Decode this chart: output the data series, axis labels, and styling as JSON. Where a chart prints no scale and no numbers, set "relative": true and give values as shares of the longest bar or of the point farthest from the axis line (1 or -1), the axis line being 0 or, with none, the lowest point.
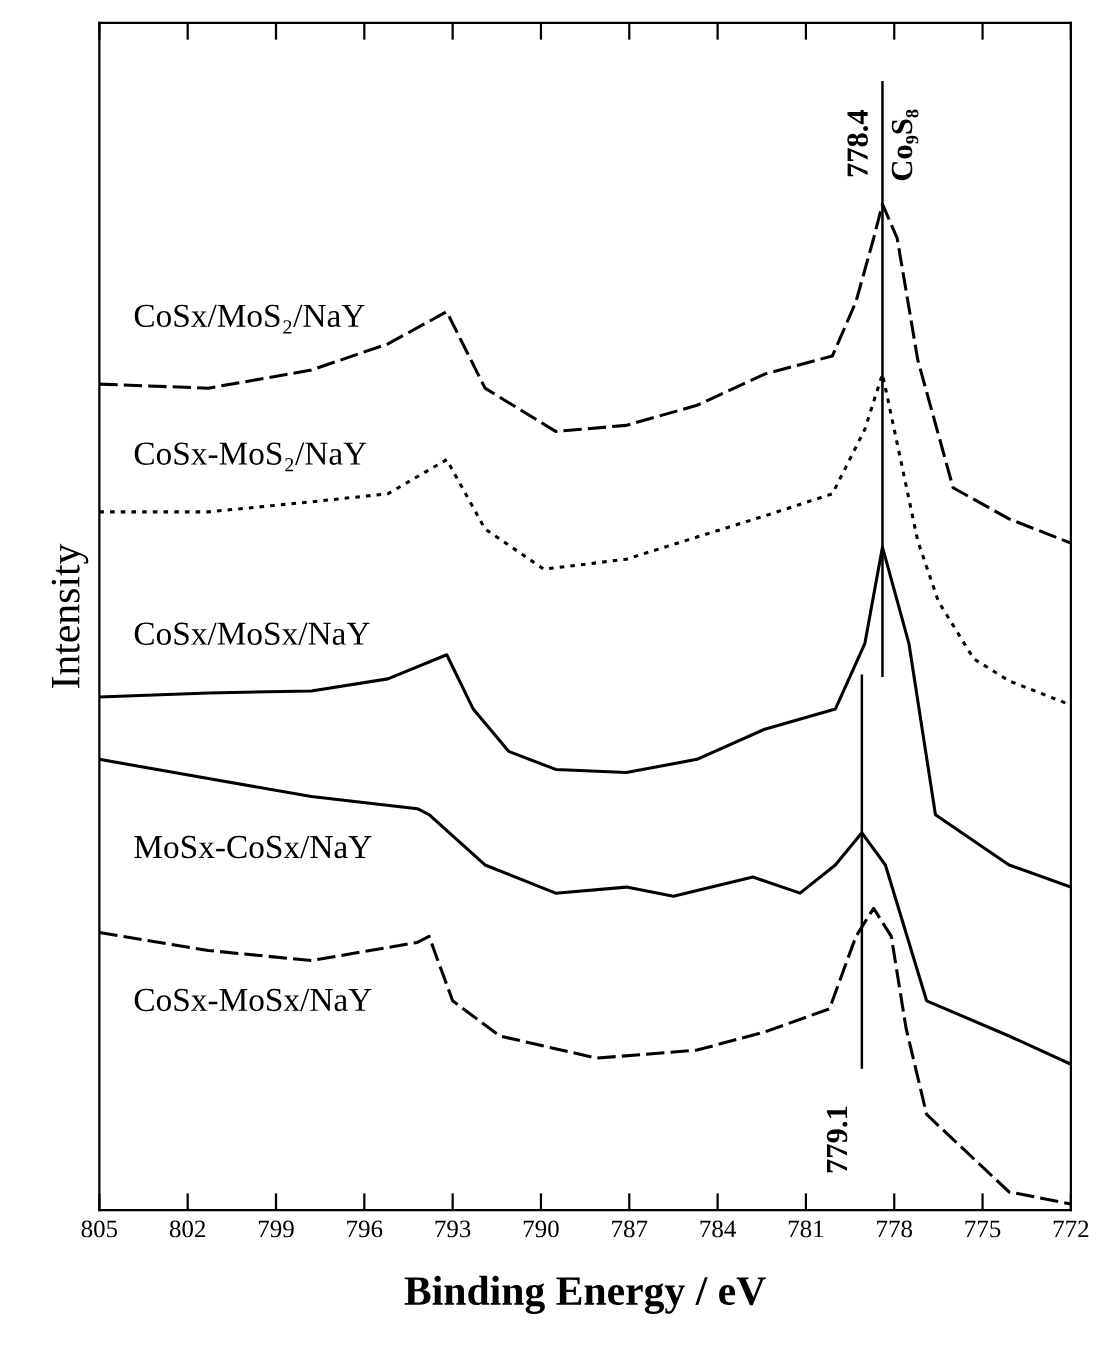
{
  "chart_data": {
    "type": "line",
    "xlabel": "Binding Energy / eV",
    "ylabel": "Intensity",
    "relative": true,
    "xlim": [
      805,
      772
    ],
    "xticks": [
      805,
      802,
      799,
      796,
      793,
      790,
      787,
      784,
      781,
      778,
      775,
      772
    ],
    "grid": false,
    "legend": false,
    "marker": "none",
    "series": [
      {
        "name": "CoSx/MoS₂/NaY",
        "color": "#000000",
        "line_style": "dashed",
        "x": [
          805,
          801.3,
          797.8,
          795.2,
          793.2,
          791.9,
          789.5,
          787.1,
          784.7,
          782.4,
          780.1,
          779.3,
          778.7,
          778.4,
          777.9,
          777.2,
          776.0,
          774.1,
          772
        ],
        "values": [
          0.821,
          0.817,
          0.835,
          0.861,
          0.893,
          0.817,
          0.774,
          0.78,
          0.8,
          0.831,
          0.849,
          0.903,
          0.966,
          1.0,
          0.966,
          0.845,
          0.718,
          0.687,
          0.663
        ]
      },
      {
        "name": "CoSx-MoS₂/NaY",
        "color": "#000000",
        "line_style": "dotted",
        "x": [
          805,
          801.3,
          797.8,
          795.2,
          793.2,
          791.9,
          789.9,
          787.1,
          784.7,
          782.4,
          780.1,
          779.0,
          778.4,
          777.9,
          777.2,
          776.5,
          775.3,
          774.1,
          772
        ],
        "values": [
          0.694,
          0.694,
          0.704,
          0.712,
          0.746,
          0.677,
          0.637,
          0.647,
          0.669,
          0.69,
          0.712,
          0.776,
          0.831,
          0.762,
          0.665,
          0.605,
          0.548,
          0.526,
          0.502
        ]
      },
      {
        "name": "CoSx/MoSx/NaY",
        "color": "#000000",
        "line_style": "solid",
        "x": [
          805,
          801.3,
          797.8,
          795.2,
          793.2,
          792.3,
          791.1,
          789.5,
          787.1,
          784.7,
          782.4,
          780.0,
          779.0,
          778.4,
          777.5,
          776.6,
          774.1,
          772
        ],
        "values": [
          0.51,
          0.514,
          0.516,
          0.528,
          0.552,
          0.498,
          0.456,
          0.438,
          0.435,
          0.448,
          0.478,
          0.498,
          0.563,
          0.659,
          0.563,
          0.393,
          0.343,
          0.321
        ]
      },
      {
        "name": "MoSx-CoSx/NaY",
        "color": "#000000",
        "line_style": "solid",
        "x": [
          805,
          801.3,
          797.8,
          794.2,
          793.8,
          791.9,
          789.5,
          787.1,
          785.5,
          782.8,
          781.2,
          780.0,
          779.1,
          778.3,
          776.9,
          774.1,
          772
        ],
        "values": [
          0.448,
          0.429,
          0.411,
          0.399,
          0.393,
          0.343,
          0.315,
          0.321,
          0.312,
          0.331,
          0.315,
          0.343,
          0.375,
          0.343,
          0.208,
          0.173,
          0.145
        ]
      },
      {
        "name": "CoSx-MoSx/NaY",
        "color": "#000000",
        "line_style": "dashed",
        "x": [
          805,
          801.3,
          797.8,
          794.2,
          793.8,
          793.0,
          791.4,
          788.1,
          784.7,
          782.4,
          780.2,
          779.3,
          778.7,
          778.1,
          777.6,
          776.9,
          774.1,
          772
        ],
        "values": [
          0.276,
          0.258,
          0.248,
          0.266,
          0.272,
          0.208,
          0.173,
          0.151,
          0.159,
          0.177,
          0.2,
          0.272,
          0.3,
          0.272,
          0.181,
          0.095,
          0.018,
          0.006
        ]
      }
    ],
    "ref_lines": [
      {
        "axis": "x",
        "value": 778.4,
        "label": "778.4",
        "color": "#000000"
      },
      {
        "axis": "x",
        "value": 779.1,
        "label": "779.1",
        "color": "#000000"
      }
    ],
    "annotations": [
      {
        "text": "Co₉S₈",
        "x": 778.4,
        "y": 1.12
      }
    ]
  }
}
